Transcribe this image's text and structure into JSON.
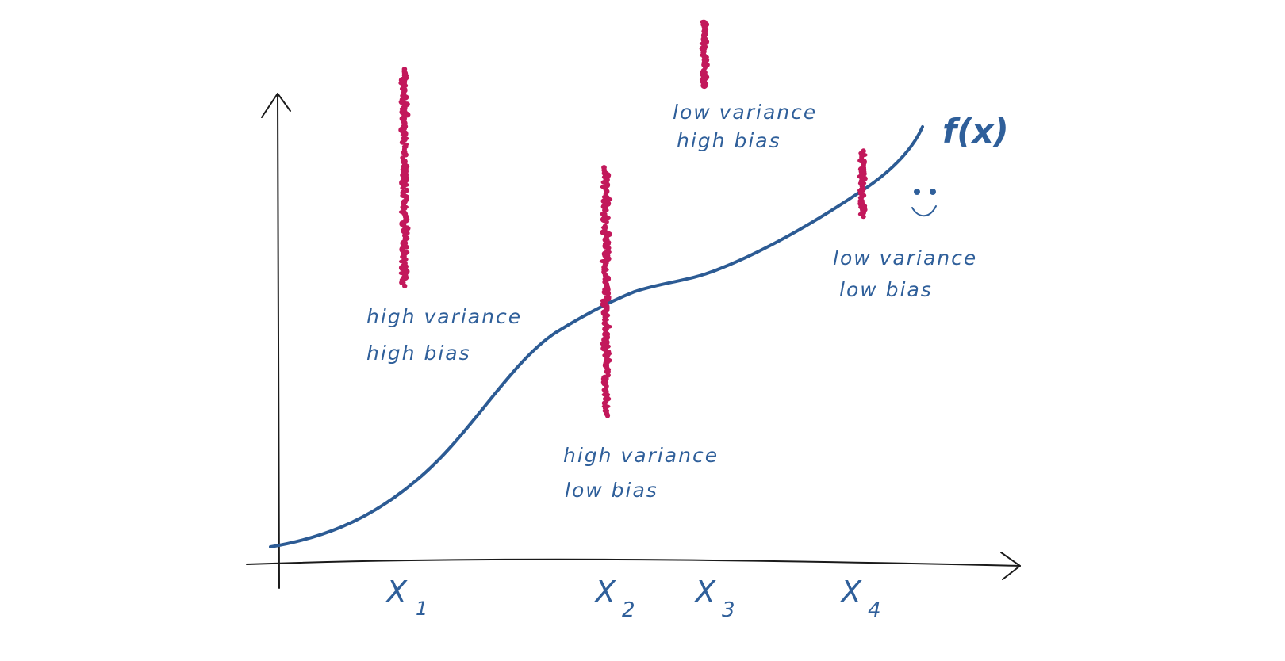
{
  "colors": {
    "axis": "#1a1a1a",
    "curve": "#2c5b94",
    "samples": "#c2185b",
    "text": "#2f5f9a"
  },
  "curve_label": "f(x)",
  "x_ticks": [
    {
      "label": "X",
      "sub": "1"
    },
    {
      "label": "X",
      "sub": "2"
    },
    {
      "label": "X",
      "sub": "3"
    },
    {
      "label": "X",
      "sub": "4"
    }
  ],
  "annotations": [
    {
      "line1": "high variance",
      "line2": "high bias"
    },
    {
      "line1": "high variance",
      "line2": "low bias"
    },
    {
      "line1": "low variance",
      "line2": "high bias"
    },
    {
      "line1": "low variance",
      "line2": "low bias"
    }
  ],
  "smiley_icon": "smiley-face-icon"
}
